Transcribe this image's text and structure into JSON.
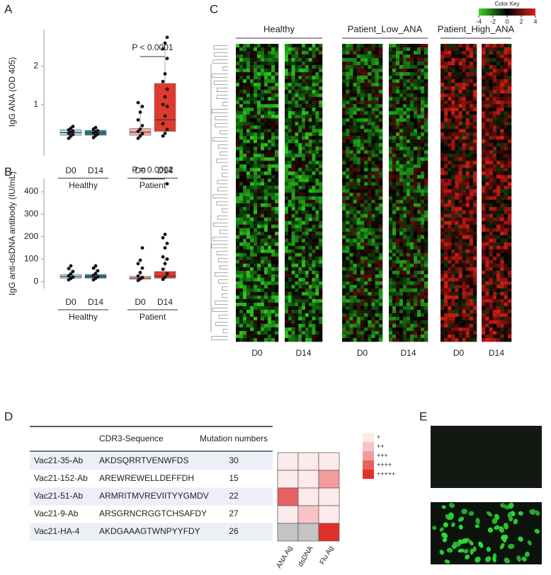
{
  "panel_labels": [
    "A",
    "B",
    "C",
    "D",
    "E"
  ],
  "chart_data": [
    {
      "type": "box",
      "ylabel": "IgG ANA (OD 405)",
      "annotation": "P < 0.0001",
      "categories": [
        "D0",
        "D14",
        "D0",
        "D14"
      ],
      "groups": [
        "Healthy",
        "Patient"
      ],
      "colors": [
        "#a9d2dc",
        "#2f7d8e",
        "#f5a9a9",
        "#e0392d"
      ],
      "ylim": [
        -0.33,
        2.95
      ],
      "yticks": [
        1,
        2
      ],
      "boxes": [
        {
          "min": 0.1,
          "q1": 0.2,
          "median": 0.27,
          "q3": 0.35,
          "max": 0.45,
          "points": [
            0.12,
            0.18,
            0.22,
            0.25,
            0.28,
            0.31,
            0.34,
            0.38,
            0.43
          ]
        },
        {
          "min": 0.12,
          "q1": 0.2,
          "median": 0.26,
          "q3": 0.33,
          "max": 0.42,
          "points": [
            0.14,
            0.19,
            0.23,
            0.26,
            0.29,
            0.32,
            0.36,
            0.4
          ]
        },
        {
          "min": 0.1,
          "q1": 0.2,
          "median": 0.28,
          "q3": 0.38,
          "max": 1.05,
          "points": [
            0.12,
            0.18,
            0.24,
            0.3,
            0.36,
            0.45,
            0.6,
            0.8,
            0.95,
            1.05
          ]
        },
        {
          "min": 0.15,
          "q1": 0.3,
          "median": 0.6,
          "q3": 1.55,
          "max": 2.6,
          "points": [
            0.18,
            0.25,
            0.35,
            0.5,
            0.7,
            0.95,
            1.0,
            1.2,
            1.4,
            1.6,
            1.8,
            2.2,
            2.45,
            2.6,
            2.75
          ]
        }
      ]
    },
    {
      "type": "box",
      "ylabel": "IgG anti-dsDNA antibody (IU/mL)",
      "annotation": "P = 0.0002",
      "categories": [
        "D0",
        "D14",
        "D0",
        "D14"
      ],
      "groups": [
        "Healthy",
        "Patient"
      ],
      "colors": [
        "#a9d2dc",
        "#2f7d8e",
        "#f5a9a9",
        "#e0392d"
      ],
      "ylim": [
        -31,
        460
      ],
      "yticks": [
        0,
        100,
        200,
        300,
        400
      ],
      "boxes": [
        {
          "min": 5,
          "q1": 15,
          "median": 22,
          "q3": 32,
          "max": 60,
          "points": [
            8,
            14,
            20,
            26,
            34,
            45,
            58,
            70
          ]
        },
        {
          "min": 5,
          "q1": 15,
          "median": 22,
          "q3": 32,
          "max": 65,
          "points": [
            8,
            15,
            21,
            28,
            36,
            48,
            60,
            70
          ]
        },
        {
          "min": 2,
          "q1": 10,
          "median": 16,
          "q3": 24,
          "max": 50,
          "points": [
            5,
            12,
            18,
            25,
            40,
            60,
            80,
            95,
            150
          ]
        },
        {
          "min": 5,
          "q1": 15,
          "median": 25,
          "q3": 45,
          "max": 110,
          "points": [
            10,
            20,
            35,
            55,
            80,
            100,
            110,
            150,
            170,
            195,
            210,
            435
          ]
        }
      ]
    }
  ],
  "heatmap": {
    "key_title": "Color Key",
    "key_ticks": [
      -4,
      -2,
      0,
      2,
      4
    ],
    "groups": [
      "Healthy",
      "Patient_Low_ANA",
      "Patient_High_ANA"
    ],
    "columns": [
      "D0",
      "D14",
      "D0",
      "D14",
      "D0",
      "D14"
    ]
  },
  "table": {
    "header": [
      "CDR3-Sequence",
      "Mutation numbers"
    ],
    "rows": [
      [
        "Vac21-35-Ab",
        "AKDSQRRTVENWFDS",
        30
      ],
      [
        "Vac21-152-Ab",
        "AREWREWELLDEFFDH",
        15
      ],
      [
        "Vac21-51-Ab",
        "ARMRITMVREVIITYYGMDV",
        22
      ],
      [
        "Vac21-9-Ab",
        "ARSGRNCRGGTCHSAFDY",
        27
      ],
      [
        "Vac21-HA-4",
        "AKDGAAAGTWNPYYFDY",
        26
      ]
    ]
  },
  "reactivity": {
    "columns": [
      "ANA Ag",
      "dsDNA",
      "Flu Ag"
    ],
    "legend": [
      "+",
      "++",
      "+++",
      "++++",
      "+++++"
    ],
    "legend_colors": [
      "#fdeaeb",
      "#f8c3c5",
      "#f29c9e",
      "#e86060",
      "#df3129"
    ],
    "missing_color": "#c4c4c4",
    "levels": [
      [
        1,
        1,
        1
      ],
      [
        1,
        1,
        3
      ],
      [
        4,
        1,
        1
      ],
      [
        1,
        2,
        1
      ],
      [
        null,
        null,
        5
      ]
    ]
  }
}
